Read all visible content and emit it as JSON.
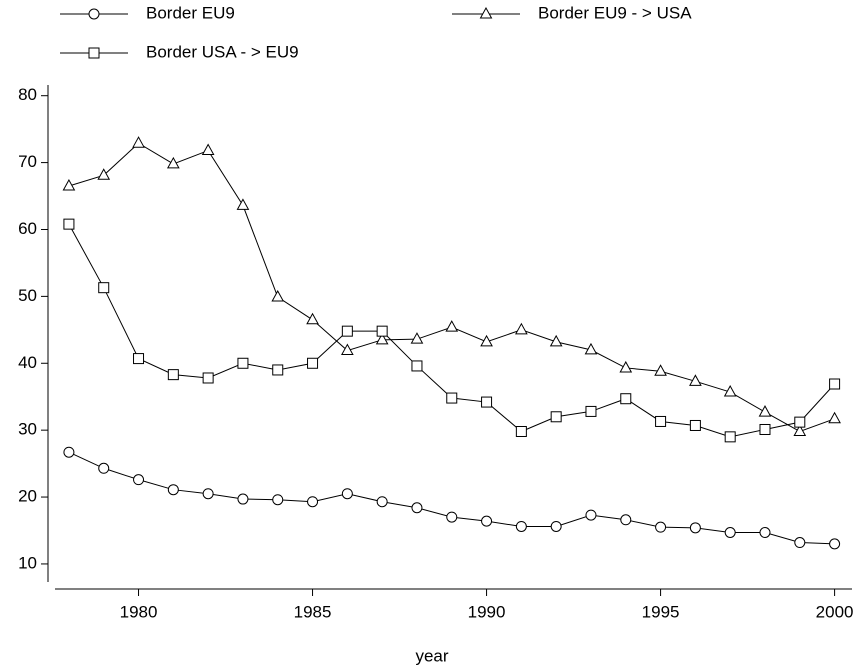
{
  "chart_data": {
    "type": "line",
    "xlabel": "year",
    "x": [
      1978,
      1979,
      1980,
      1981,
      1982,
      1983,
      1984,
      1985,
      1986,
      1987,
      1988,
      1989,
      1990,
      1991,
      1992,
      1993,
      1994,
      1995,
      1996,
      1997,
      1998,
      1999,
      2000
    ],
    "series": [
      {
        "name": "Border EU9",
        "color": "#000000",
        "marker": "circle",
        "values": [
          26.7,
          24.3,
          22.6,
          21.1,
          20.5,
          19.7,
          19.6,
          19.3,
          20.5,
          19.3,
          18.4,
          17.0,
          16.4,
          15.6,
          15.6,
          17.3,
          16.6,
          15.5,
          15.4,
          14.7,
          14.7,
          13.2,
          13.0
        ]
      },
      {
        "name": "Border EU9 - > USA",
        "color": "#000000",
        "marker": "triangle",
        "values": [
          66.5,
          68.1,
          72.9,
          69.8,
          71.8,
          63.6,
          49.9,
          46.5,
          41.9,
          43.5,
          43.6,
          45.4,
          43.2,
          45.0,
          43.2,
          42.0,
          39.3,
          38.8,
          37.3,
          35.7,
          32.7,
          29.8,
          31.7
        ]
      },
      {
        "name": "Border USA - > EU9",
        "color": "#000000",
        "marker": "square",
        "values": [
          60.8,
          51.3,
          40.7,
          38.3,
          37.8,
          40.0,
          39.0,
          40.0,
          44.8,
          44.8,
          39.6,
          34.8,
          34.2,
          29.8,
          32.0,
          32.8,
          34.7,
          31.3,
          30.7,
          29.0,
          30.1,
          31.2,
          36.9
        ]
      }
    ],
    "xlim": [
      1977.6,
      2000.5
    ],
    "xticks": [
      1980,
      1985,
      1990,
      1995,
      2000
    ],
    "ylim": [
      7.3,
      81.6
    ],
    "yticks": [
      10,
      20,
      30,
      40,
      50,
      60,
      70,
      80
    ],
    "grid": false
  }
}
